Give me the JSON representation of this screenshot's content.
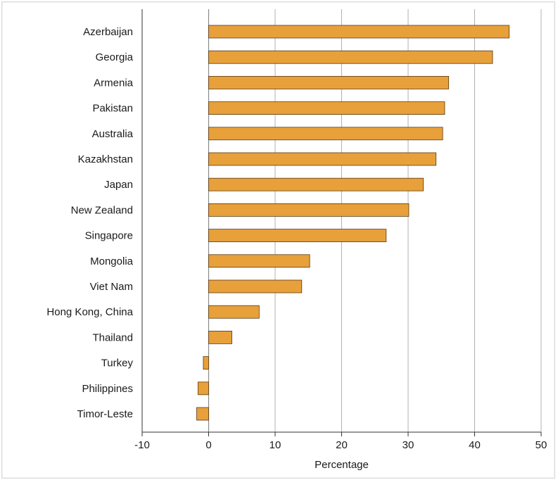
{
  "chart_data": {
    "type": "bar",
    "orientation": "horizontal",
    "categories": [
      "Azerbaijan",
      "Georgia",
      "Armenia",
      "Pakistan",
      "Australia",
      "Kazakhstan",
      "Japan",
      "New Zealand",
      "Singapore",
      "Mongolia",
      "Viet Nam",
      "Hong Kong, China",
      "Thailand",
      "Turkey",
      "Philippines",
      "Timor-Leste"
    ],
    "values": [
      45.2,
      42.7,
      36.1,
      35.5,
      35.2,
      34.2,
      32.3,
      30.1,
      26.7,
      15.2,
      14.0,
      7.6,
      3.5,
      -0.8,
      -1.6,
      -1.8
    ],
    "xlabel": "Percentage",
    "ylabel": "",
    "xlim": [
      -10,
      50
    ],
    "xticks": [
      "-10",
      "0",
      "10",
      "20",
      "30",
      "40",
      "50"
    ],
    "grid": "vertical",
    "bar_color": "#E8A03A",
    "bar_edge_color": "#5a3a12"
  }
}
